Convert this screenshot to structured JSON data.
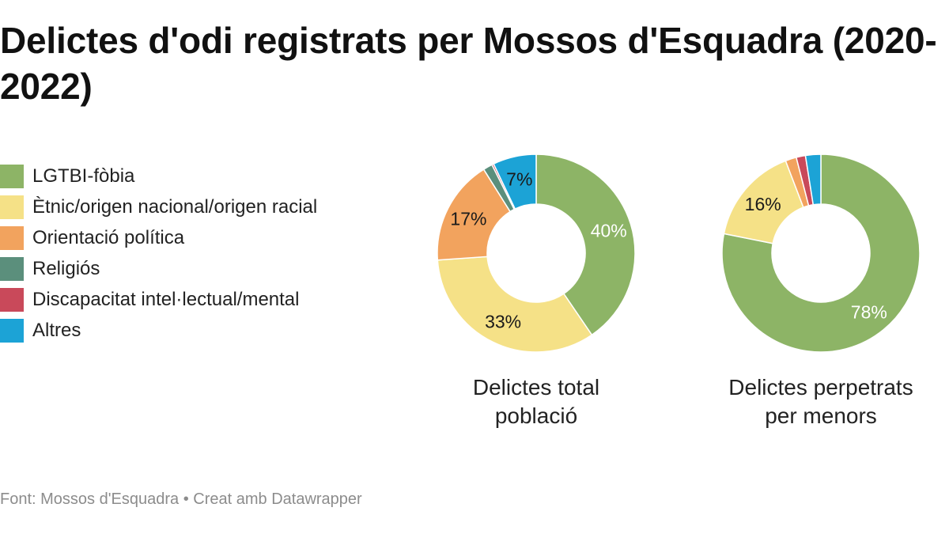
{
  "title": "Delictes d'odi registrats per Mossos d'Esquadra (2020-2022)",
  "source": "Font: Mossos d'Esquadra • Creat amb Datawrapper",
  "chart_data": {
    "type": "pie",
    "title": "Delictes d'odi registrats per Mossos d'Esquadra (2020-2022)",
    "legend_placement": "left",
    "categories": [
      {
        "name": "LGTBI-fòbia",
        "color": "#8db466"
      },
      {
        "name": "Ètnic/origen nacional/origen racial",
        "color": "#f5e187"
      },
      {
        "name": "Orientació política",
        "color": "#f2a35e"
      },
      {
        "name": "Religiós",
        "color": "#5b8f7c"
      },
      {
        "name": "Discapacitat intel·lectual/mental",
        "color": "#c9495a"
      },
      {
        "name": "Altres",
        "color": "#1ca3d6"
      }
    ],
    "charts": [
      {
        "caption": "Delictes total població",
        "values": [
          40,
          33,
          17,
          1.5,
          0.3,
          7
        ],
        "labels": [
          "40%",
          "33%",
          "17%",
          "",
          "",
          "7%"
        ]
      },
      {
        "caption": "Delictes perpetrats per menors",
        "values": [
          78,
          16,
          1.8,
          0,
          1.5,
          2.5
        ],
        "labels": [
          "78%",
          "16%",
          "",
          "",
          "",
          ""
        ]
      }
    ]
  }
}
